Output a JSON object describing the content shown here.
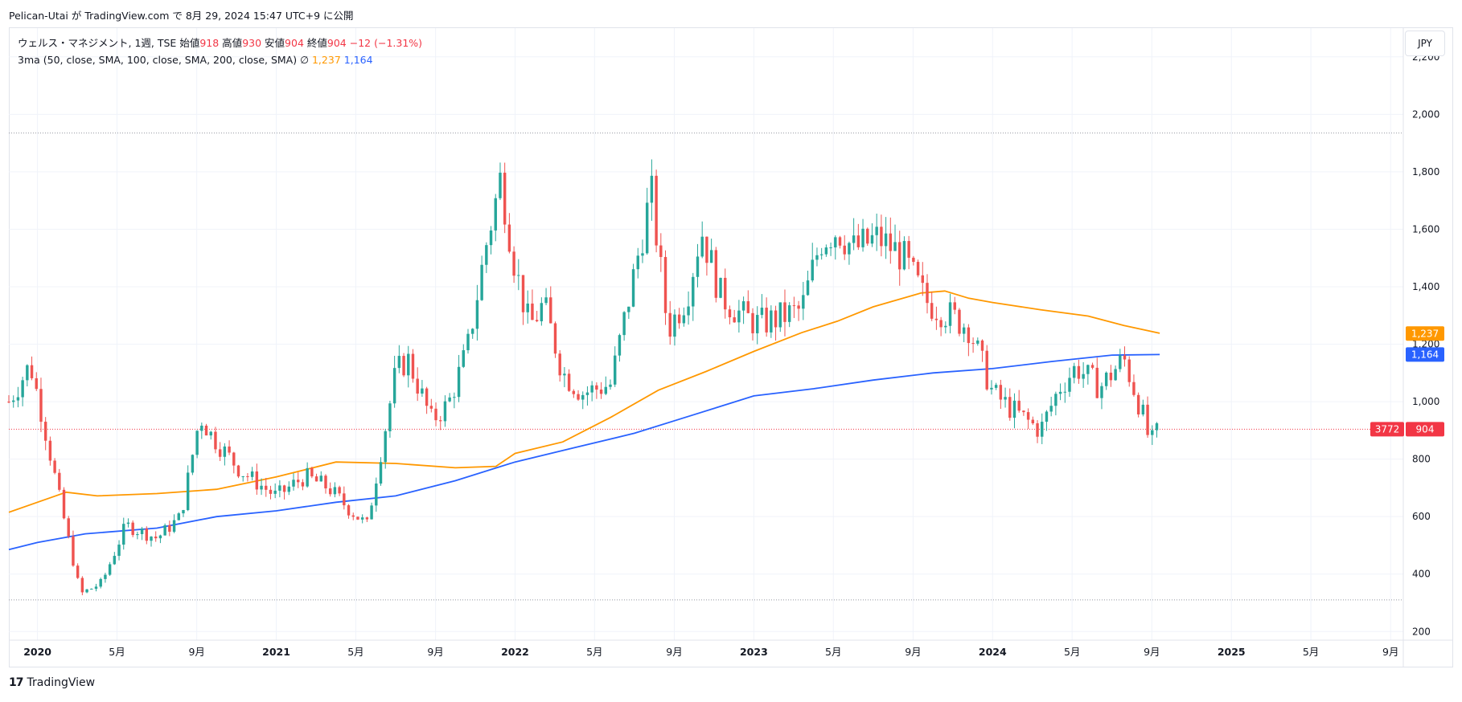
{
  "header": {
    "publish_line": "Pelican-Utai が TradingView.com で 8月 29, 2024 15:47 UTC+9 に公開"
  },
  "legend": {
    "symbol": "ウェルス・マネジメント, 1週, TSE",
    "open_label": "始値",
    "open": "918",
    "high_label": "高値",
    "high": "930",
    "low_label": "安値",
    "low": "904",
    "close_label": "終値",
    "close": "904",
    "change": "−12 (−1.31%)",
    "indicator": "3ma (50, close, SMA, 100, close, SMA, 200, close, SMA)",
    "indicator_na": "∅",
    "ma100_value": "1,237",
    "ma200_value": "1,164"
  },
  "price_axis": {
    "unit": "JPY",
    "ticks": [
      "2,200",
      "2,000",
      "1,800",
      "1,600",
      "1,400",
      "1,200",
      "1,000",
      "800",
      "600",
      "400",
      "200"
    ],
    "tick_values": [
      2200,
      2000,
      1800,
      1600,
      1400,
      1200,
      1000,
      800,
      600,
      400,
      200
    ],
    "badges": {
      "ma100": "1,237",
      "ma200": "1,164",
      "countdown": "3772",
      "last": "904"
    }
  },
  "time_axis": {
    "labels": [
      "2020",
      "5月",
      "9月",
      "2021",
      "5月",
      "9月",
      "2022",
      "5月",
      "9月",
      "2023",
      "5月",
      "9月",
      "2024",
      "5月",
      "9月",
      "2025",
      "5月",
      "9月"
    ],
    "label_times": [
      2020.0,
      2020.333,
      2020.667,
      2021.0,
      2021.333,
      2021.667,
      2022.0,
      2022.333,
      2022.667,
      2023.0,
      2023.333,
      2023.667,
      2024.0,
      2024.333,
      2024.667,
      2025.0,
      2025.333,
      2025.667
    ],
    "bold": [
      true,
      false,
      false,
      true,
      false,
      false,
      true,
      false,
      false,
      true,
      false,
      false,
      true,
      false,
      false,
      true,
      false,
      false
    ]
  },
  "footer": {
    "logo": "TradingView"
  },
  "colors": {
    "up": "#26a69a",
    "down": "#ef5350",
    "ma100": "#ff9800",
    "ma200": "#2962ff",
    "grid": "#f0f3fa",
    "last_price": "#f23645",
    "muted": "#787b86"
  },
  "chart_data": {
    "type": "candlestick",
    "title": "ウェルス・マネジメント, 1週, TSE",
    "xlabel": "",
    "ylabel": "JPY",
    "ylim": [
      170,
      2300
    ],
    "xlim": [
      2019.88,
      2025.72
    ],
    "timeframe": "1W",
    "last_price": 904,
    "hlines_dotted": [
      1935,
      310
    ],
    "series": [
      {
        "name": "MA 100",
        "color": "#ff9800",
        "points": [
          [
            2019.88,
            615
          ],
          [
            2020.0,
            650
          ],
          [
            2020.12,
            685
          ],
          [
            2020.25,
            672
          ],
          [
            2020.5,
            680
          ],
          [
            2020.75,
            695
          ],
          [
            2021.0,
            738
          ],
          [
            2021.25,
            790
          ],
          [
            2021.5,
            785
          ],
          [
            2021.75,
            770
          ],
          [
            2021.92,
            775
          ],
          [
            2022.0,
            820
          ],
          [
            2022.2,
            860
          ],
          [
            2022.4,
            945
          ],
          [
            2022.6,
            1040
          ],
          [
            2022.8,
            1105
          ],
          [
            2023.0,
            1175
          ],
          [
            2023.2,
            1240
          ],
          [
            2023.35,
            1280
          ],
          [
            2023.5,
            1330
          ],
          [
            2023.7,
            1378
          ],
          [
            2023.8,
            1385
          ],
          [
            2023.9,
            1360
          ],
          [
            2024.0,
            1345
          ],
          [
            2024.2,
            1320
          ],
          [
            2024.4,
            1298
          ],
          [
            2024.55,
            1265
          ],
          [
            2024.7,
            1238
          ]
        ]
      },
      {
        "name": "MA 200",
        "color": "#2962ff",
        "points": [
          [
            2019.88,
            485
          ],
          [
            2020.0,
            510
          ],
          [
            2020.2,
            540
          ],
          [
            2020.5,
            560
          ],
          [
            2020.75,
            600
          ],
          [
            2021.0,
            620
          ],
          [
            2021.25,
            650
          ],
          [
            2021.5,
            672
          ],
          [
            2021.75,
            725
          ],
          [
            2022.0,
            790
          ],
          [
            2022.25,
            840
          ],
          [
            2022.5,
            890
          ],
          [
            2022.75,
            955
          ],
          [
            2023.0,
            1020
          ],
          [
            2023.25,
            1045
          ],
          [
            2023.5,
            1075
          ],
          [
            2023.75,
            1100
          ],
          [
            2024.0,
            1115
          ],
          [
            2024.25,
            1140
          ],
          [
            2024.5,
            1162
          ],
          [
            2024.7,
            1164
          ]
        ]
      }
    ],
    "candles_knots": [
      [
        2019.88,
        1000
      ],
      [
        2019.97,
        1130
      ],
      [
        2020.02,
        950
      ],
      [
        2020.09,
        670
      ],
      [
        2020.18,
        330
      ],
      [
        2020.27,
        370
      ],
      [
        2020.37,
        570
      ],
      [
        2020.5,
        525
      ],
      [
        2020.6,
        600
      ],
      [
        2020.68,
        950
      ],
      [
        2020.73,
        880
      ],
      [
        2020.85,
        760
      ],
      [
        2021.0,
        670
      ],
      [
        2021.12,
        740
      ],
      [
        2021.22,
        700
      ],
      [
        2021.3,
        630
      ],
      [
        2021.38,
        570
      ],
      [
        2021.5,
        1100
      ],
      [
        2021.55,
        1150
      ],
      [
        2021.65,
        935
      ],
      [
        2021.72,
        990
      ],
      [
        2021.8,
        1180
      ],
      [
        2021.88,
        1550
      ],
      [
        2021.94,
        1780
      ],
      [
        2022.0,
        1470
      ],
      [
        2022.06,
        1260
      ],
      [
        2022.12,
        1340
      ],
      [
        2022.2,
        1100
      ],
      [
        2022.28,
        1030
      ],
      [
        2022.4,
        1060
      ],
      [
        2022.5,
        1450
      ],
      [
        2022.57,
        1730
      ],
      [
        2022.64,
        1250
      ],
      [
        2022.72,
        1370
      ],
      [
        2022.78,
        1600
      ],
      [
        2022.86,
        1370
      ],
      [
        2022.95,
        1300
      ],
      [
        2023.02,
        1270
      ],
      [
        2023.1,
        1290
      ],
      [
        2023.2,
        1320
      ],
      [
        2023.28,
        1560
      ],
      [
        2023.35,
        1600
      ],
      [
        2023.42,
        1530
      ],
      [
        2023.52,
        1570
      ],
      [
        2023.62,
        1510
      ],
      [
        2023.72,
        1350
      ],
      [
        2023.82,
        1300
      ],
      [
        2023.9,
        1260
      ],
      [
        2024.0,
        1030
      ],
      [
        2024.1,
        960
      ],
      [
        2024.2,
        900
      ],
      [
        2024.28,
        1050
      ],
      [
        2024.35,
        1120
      ],
      [
        2024.45,
        1050
      ],
      [
        2024.55,
        1150
      ],
      [
        2024.63,
        950
      ],
      [
        2024.66,
        850
      ],
      [
        2024.7,
        910
      ]
    ]
  }
}
